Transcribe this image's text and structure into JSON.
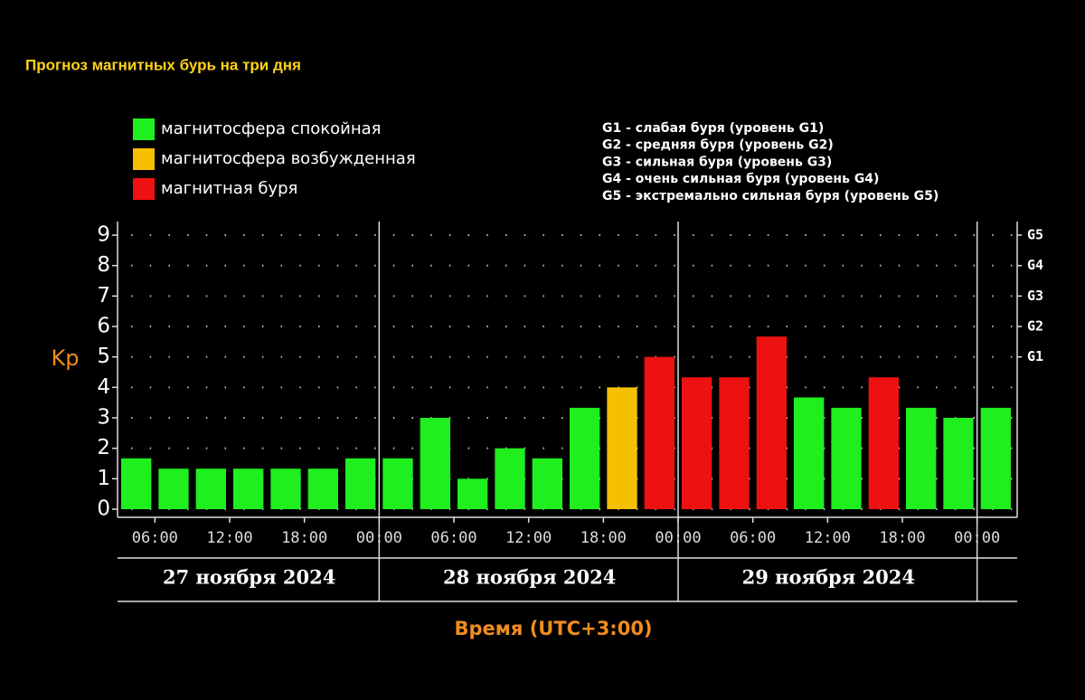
{
  "chart_data": {
    "type": "bar",
    "title": "Прогноз магнитных бурь на три дня",
    "y_label": "Kp",
    "x_label": "Время (UTC+3:00)",
    "values": [
      1.67,
      1.33,
      1.33,
      1.33,
      1.33,
      1.33,
      1.67,
      1.67,
      3.0,
      1.0,
      2.0,
      1.67,
      3.33,
      4.0,
      5.0,
      4.33,
      4.33,
      5.67,
      3.67,
      3.33,
      4.33,
      3.33,
      3.0,
      3.33
    ],
    "colors": [
      "#1fee1f",
      "#1fee1f",
      "#1fee1f",
      "#1fee1f",
      "#1fee1f",
      "#1fee1f",
      "#1fee1f",
      "#1fee1f",
      "#1fee1f",
      "#1fee1f",
      "#1fee1f",
      "#1fee1f",
      "#1fee1f",
      "#f5c000",
      "#ee1111",
      "#ee1111",
      "#ee1111",
      "#ee1111",
      "#1fee1f",
      "#1fee1f",
      "#ee1111",
      "#1fee1f",
      "#1fee1f",
      "#1fee1f"
    ],
    "ylim": [
      0,
      9
    ],
    "yticks": [
      0,
      1,
      2,
      3,
      4,
      5,
      6,
      7,
      8,
      9
    ],
    "y2lim": [
      0,
      9
    ],
    "y2ticks": [
      {
        "value": 5,
        "label": "G1"
      },
      {
        "value": 6,
        "label": "G2"
      },
      {
        "value": 7,
        "label": "G3"
      },
      {
        "value": 8,
        "label": "G4"
      },
      {
        "value": 9,
        "label": "G5"
      }
    ],
    "x_tick_labels": [
      "06:00",
      "12:00",
      "18:00",
      "00:00",
      "06:00",
      "12:00",
      "18:00",
      "00:00",
      "06:00",
      "12:00",
      "18:00",
      "00:00"
    ],
    "days": [
      "27 ноября 2024",
      "28 ноября 2024",
      "29 ноября 2024"
    ],
    "grid": true,
    "legend": [
      {
        "name": "магнитосфера спокойная",
        "color": "#1fee1f"
      },
      {
        "name": "магнитосфера возбужденная",
        "color": "#f5c000"
      },
      {
        "name": "магнитная буря",
        "color": "#ee1111"
      }
    ],
    "storm_levels": [
      "G1 - слабая буря (уровень G1)",
      "G2 - средняя буря (уровень G2)",
      "G3 - сильная буря (уровень G3)",
      "G4 - очень сильная буря (уровень G4)",
      "G5 - экстремально сильная буря (уровень G5)"
    ]
  }
}
